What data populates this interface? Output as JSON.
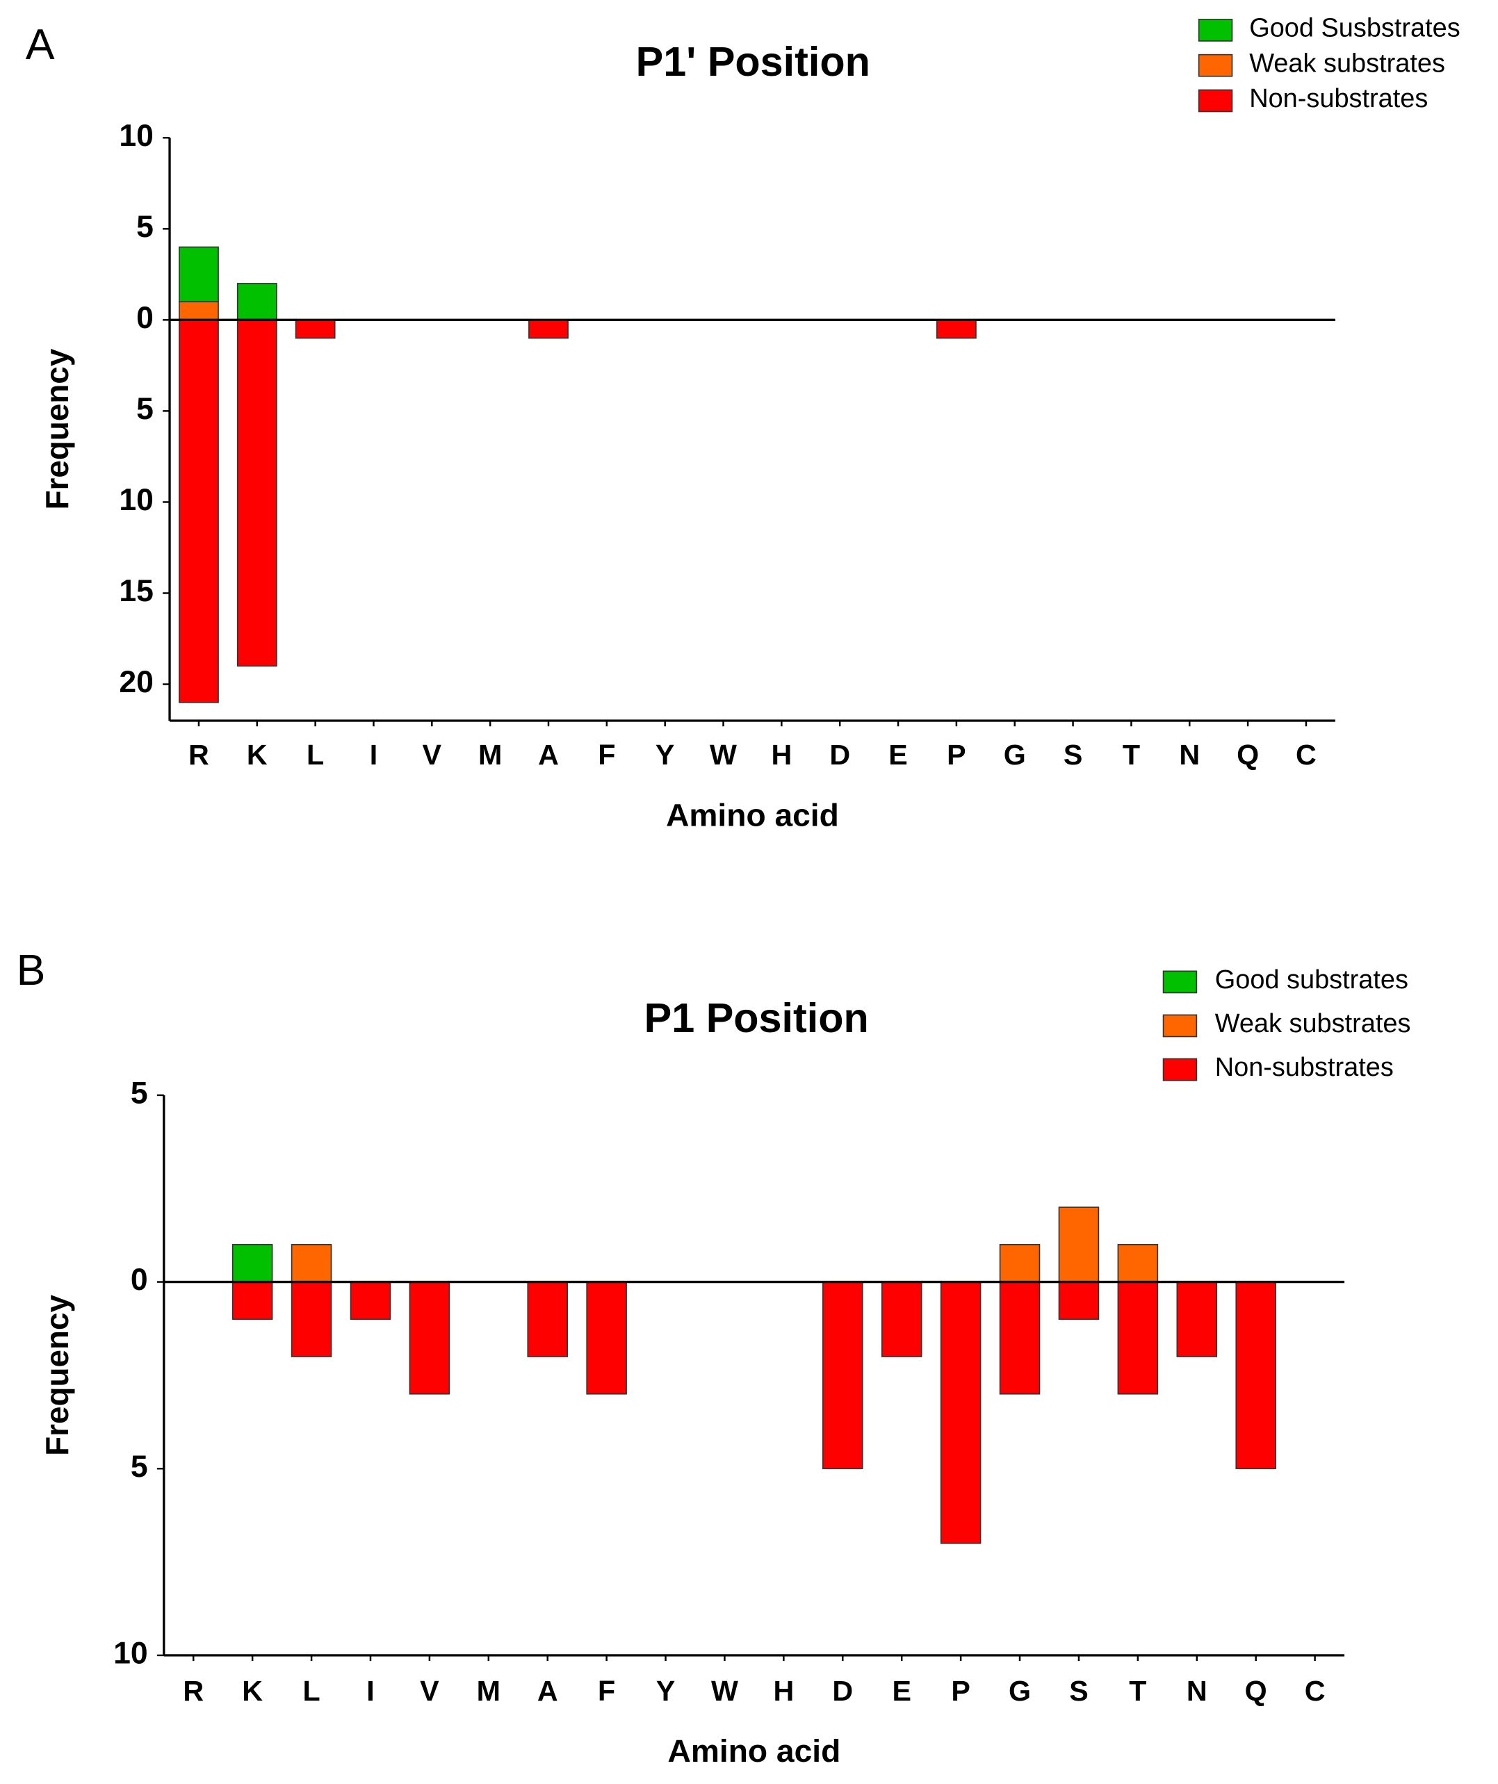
{
  "chart_data": [
    {
      "type": "bar",
      "panel": "A",
      "title": "P1' Position",
      "x_label": "Amino acid",
      "y_label": "Frequency",
      "categories": [
        "R",
        "K",
        "L",
        "I",
        "V",
        "M",
        "A",
        "F",
        "Y",
        "W",
        "H",
        "D",
        "E",
        "P",
        "G",
        "S",
        "T",
        "N",
        "Q",
        "C"
      ],
      "series": [
        {
          "name": "Good Susbstrates",
          "color": "#00c000",
          "values": [
            3,
            2,
            0,
            0,
            0,
            0,
            0,
            0,
            0,
            0,
            0,
            0,
            0,
            0,
            0,
            0,
            0,
            0,
            0,
            0
          ]
        },
        {
          "name": "Weak substrates",
          "color": "#ff6600",
          "values": [
            1,
            0,
            0,
            0,
            0,
            0,
            0,
            0,
            0,
            0,
            0,
            0,
            0,
            0,
            0,
            0,
            0,
            0,
            0,
            0
          ]
        },
        {
          "name": "Non-substrates",
          "color": "#ff0000",
          "values": [
            -21,
            -19,
            -1,
            0,
            0,
            0,
            -1,
            0,
            0,
            0,
            0,
            0,
            0,
            -1,
            0,
            0,
            0,
            0,
            0,
            0
          ]
        }
      ],
      "ylim": [
        -22,
        10
      ],
      "yticks": [
        10,
        5,
        0,
        {
          "value": -5,
          "label": "5"
        },
        {
          "value": -10,
          "label": "10"
        },
        {
          "value": -15,
          "label": "15"
        },
        {
          "value": -20,
          "label": "20"
        }
      ],
      "stacked": true,
      "legend": "upper right"
    },
    {
      "type": "bar",
      "panel": "B",
      "title": "P1 Position",
      "x_label": "Amino acid",
      "y_label": "Frequency",
      "categories": [
        "R",
        "K",
        "L",
        "I",
        "V",
        "M",
        "A",
        "F",
        "Y",
        "W",
        "H",
        "D",
        "E",
        "P",
        "G",
        "S",
        "T",
        "N",
        "Q",
        "C"
      ],
      "series": [
        {
          "name": "Good substrates",
          "color": "#00c000",
          "values": [
            0,
            1,
            0,
            0,
            0,
            0,
            0,
            0,
            0,
            0,
            0,
            0,
            0,
            0,
            0,
            0,
            0,
            0,
            0,
            0
          ]
        },
        {
          "name": "Weak substrates",
          "color": "#ff6600",
          "values": [
            0,
            0,
            1,
            0,
            0,
            0,
            0,
            0,
            0,
            0,
            0,
            0,
            0,
            0,
            1,
            2,
            1,
            0,
            0,
            0
          ]
        },
        {
          "name": "Non-substrates",
          "color": "#ff0000",
          "values": [
            0,
            -1,
            -2,
            -1,
            -3,
            0,
            -2,
            -3,
            0,
            0,
            0,
            -5,
            -2,
            -7,
            -3,
            -1,
            -3,
            -2,
            -5,
            0
          ]
        }
      ],
      "ylim": [
        -10,
        5
      ],
      "yticks": [
        5,
        0,
        {
          "value": -5,
          "label": "5"
        },
        {
          "value": -10,
          "label": "10"
        }
      ],
      "stacked": true,
      "legend": "upper right"
    }
  ]
}
